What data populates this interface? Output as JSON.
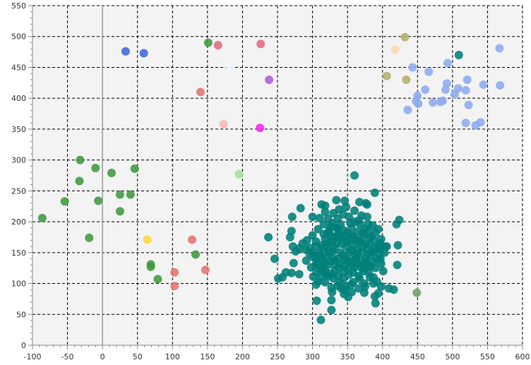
{
  "chart_data": {
    "type": "scatter",
    "title": "",
    "xlabel": "",
    "ylabel": "",
    "xlim": [
      -100,
      600
    ],
    "ylim": [
      0,
      550
    ],
    "x_ticks": [
      -100,
      -50,
      0,
      50,
      100,
      150,
      200,
      250,
      300,
      350,
      400,
      450,
      500,
      550,
      600
    ],
    "y_ticks": [
      0,
      50,
      100,
      150,
      200,
      250,
      300,
      350,
      400,
      450,
      500,
      550
    ],
    "grid": true,
    "zero_line": "x=0",
    "plot_background": "#f3f3f3",
    "marker_radius_note": "uniform filled circles, alpha ~0.85",
    "series": [
      {
        "color": "#00807a",
        "points": [
          [
            360,
            275
          ],
          [
            389,
            247
          ],
          [
            334,
            235
          ],
          [
            378,
            228
          ],
          [
            367,
            232
          ],
          [
            346,
            234
          ],
          [
            313,
            228
          ],
          [
            283,
            222
          ],
          [
            300,
            208
          ],
          [
            271,
            208
          ],
          [
            322,
            205
          ],
          [
            424,
            203
          ],
          [
            270,
            185
          ],
          [
            268,
            175
          ],
          [
            237,
            175
          ],
          [
            272,
            160
          ],
          [
            296,
            158
          ],
          [
            305,
            160
          ],
          [
            281,
            157
          ],
          [
            276,
            152
          ],
          [
            290,
            155
          ],
          [
            422,
            162
          ],
          [
            246,
            140
          ],
          [
            291,
            137
          ],
          [
            273,
            133
          ],
          [
            421,
            130
          ],
          [
            305,
            130
          ],
          [
            310,
            128
          ],
          [
            262,
            118
          ],
          [
            251,
            108
          ],
          [
            270,
            117
          ],
          [
            281,
            115
          ],
          [
            257,
            110
          ],
          [
            301,
            111
          ],
          [
            305,
            98
          ],
          [
            308,
            103
          ],
          [
            323,
            112
          ],
          [
            327,
            93
          ],
          [
            341,
            92
          ],
          [
            345,
            83
          ],
          [
            351,
            78
          ],
          [
            374,
            85
          ],
          [
            389,
            79
          ],
          [
            394,
            84
          ],
          [
            375,
            95
          ],
          [
            409,
            92
          ],
          [
            416,
            90
          ],
          [
            327,
            73
          ],
          [
            306,
            72
          ],
          [
            327,
            57
          ],
          [
            312,
            41
          ],
          [
            390,
            68
          ],
          [
            387,
            100
          ],
          [
            367,
            108
          ],
          [
            355,
            98
          ],
          [
            344,
            118
          ],
          [
            332,
            120
          ],
          [
            320,
            128
          ],
          [
            349,
            140
          ],
          [
            361,
            145
          ],
          [
            372,
            150
          ],
          [
            381,
            163
          ],
          [
            396,
            165
          ],
          [
            404,
            160
          ],
          [
            395,
            148
          ],
          [
            387,
            135
          ],
          [
            379,
            130
          ],
          [
            370,
            125
          ],
          [
            357,
            132
          ],
          [
            346,
            138
          ],
          [
            340,
            150
          ],
          [
            332,
            158
          ],
          [
            325,
            166
          ],
          [
            318,
            172
          ],
          [
            316,
            180
          ],
          [
            324,
            186
          ],
          [
            336,
            188
          ],
          [
            349,
            182
          ],
          [
            359,
            176
          ],
          [
            366,
            170
          ],
          [
            371,
            160
          ],
          [
            364,
            155
          ],
          [
            358,
            162
          ],
          [
            350,
            168
          ],
          [
            341,
            172
          ],
          [
            334,
            165
          ],
          [
            329,
            152
          ],
          [
            321,
            146
          ],
          [
            314,
            140
          ],
          [
            308,
            133
          ],
          [
            312,
            121
          ],
          [
            320,
            115
          ],
          [
            330,
            108
          ],
          [
            339,
            102
          ],
          [
            348,
            96
          ],
          [
            358,
            102
          ],
          [
            366,
            112
          ],
          [
            373,
            120
          ],
          [
            380,
            118
          ],
          [
            387,
            110
          ],
          [
            392,
            103
          ],
          [
            398,
            95
          ],
          [
            401,
            120
          ],
          [
            398,
            132
          ],
          [
            392,
            140
          ],
          [
            386,
            152
          ],
          [
            382,
            174
          ],
          [
            375,
            188
          ],
          [
            368,
            196
          ],
          [
            360,
            200
          ],
          [
            352,
            208
          ],
          [
            344,
            212
          ],
          [
            336,
            205
          ],
          [
            328,
            198
          ],
          [
            316,
            196
          ],
          [
            308,
            188
          ],
          [
            300,
            178
          ],
          [
            292,
            170
          ],
          [
            286,
            165
          ],
          [
            296,
            148
          ],
          [
            304,
            144
          ],
          [
            316,
            158
          ],
          [
            338,
            176
          ],
          [
            356,
            190
          ],
          [
            372,
            182
          ],
          [
            384,
            176
          ],
          [
            390,
            182
          ],
          [
            398,
            172
          ],
          [
            406,
            160
          ],
          [
            403,
            150
          ],
          [
            397,
            140
          ],
          [
            390,
            125
          ],
          [
            382,
            110
          ],
          [
            374,
            100
          ],
          [
            366,
            92
          ],
          [
            356,
            86
          ],
          [
            346,
            90
          ],
          [
            336,
            96
          ],
          [
            328,
            86
          ],
          [
            318,
            102
          ],
          [
            312,
            110
          ],
          [
            306,
            118
          ],
          [
            318,
            134
          ],
          [
            330,
            140
          ],
          [
            344,
            146
          ],
          [
            352,
            150
          ],
          [
            362,
            140
          ],
          [
            368,
            138
          ],
          [
            376,
            140
          ],
          [
            382,
            145
          ],
          [
            358,
            118
          ],
          [
            350,
            124
          ],
          [
            338,
            126
          ],
          [
            330,
            130
          ],
          [
            324,
            150
          ],
          [
            336,
            140
          ],
          [
            348,
            160
          ],
          [
            356,
            154
          ],
          [
            364,
            148
          ],
          [
            342,
            164
          ],
          [
            332,
            176
          ],
          [
            320,
            164
          ],
          [
            310,
            150
          ],
          [
            302,
            142
          ],
          [
            298,
            126
          ],
          [
            311,
            146
          ],
          [
            322,
            182
          ],
          [
            326,
            192
          ],
          [
            340,
            196
          ],
          [
            354,
            198
          ],
          [
            366,
            202
          ],
          [
            378,
            208
          ],
          [
            386,
            194
          ],
          [
            394,
            188
          ],
          [
            380,
            196
          ],
          [
            370,
            210
          ],
          [
            360,
            218
          ],
          [
            348,
            224
          ],
          [
            338,
            220
          ],
          [
            330,
            214
          ],
          [
            318,
            216
          ],
          [
            310,
            206
          ],
          [
            318,
            226
          ],
          [
            396,
            156
          ],
          [
            389,
            158
          ],
          [
            383,
            128
          ],
          [
            377,
            134
          ],
          [
            369,
            166
          ],
          [
            361,
            170
          ],
          [
            353,
            172
          ],
          [
            345,
            176
          ],
          [
            337,
            180
          ],
          [
            329,
            170
          ],
          [
            321,
            158
          ],
          [
            313,
            162
          ],
          [
            305,
            168
          ],
          [
            352,
            114
          ],
          [
            344,
            108
          ],
          [
            336,
            112
          ],
          [
            326,
            116
          ],
          [
            318,
            120
          ],
          [
            360,
            126
          ],
          [
            372,
            130
          ],
          [
            346,
            128
          ],
          [
            354,
            136
          ],
          [
            362,
            132
          ],
          [
            338,
            132
          ],
          [
            326,
            136
          ],
          [
            314,
            128
          ],
          [
            306,
            136
          ],
          [
            300,
            150
          ],
          [
            372,
            176
          ],
          [
            380,
            184
          ],
          [
            388,
            170
          ],
          [
            394,
            160
          ],
          [
            378,
            156
          ],
          [
            384,
            150
          ],
          [
            376,
            164
          ],
          [
            365,
            184
          ],
          [
            356,
            178
          ],
          [
            345,
            186
          ],
          [
            335,
            190
          ],
          [
            325,
            178
          ],
          [
            376,
            230
          ],
          [
            420,
            196
          ]
        ]
      },
      {
        "color": "#3f9a3f",
        "points": [
          [
            -86,
            206
          ],
          [
            -54,
            233
          ],
          [
            -32,
            300
          ],
          [
            -33,
            266
          ],
          [
            -10,
            287
          ],
          [
            -6,
            234
          ],
          [
            -19,
            174
          ],
          [
            13,
            279
          ],
          [
            25,
            244
          ],
          [
            25,
            217
          ],
          [
            40,
            244
          ],
          [
            46,
            286
          ],
          [
            69,
            131
          ],
          [
            69,
            127
          ],
          [
            79,
            107
          ],
          [
            133,
            147
          ],
          [
            151,
            490
          ]
        ]
      },
      {
        "color": "#6fa06a",
        "points": [
          [
            449,
            85
          ]
        ]
      },
      {
        "color": "#e57373",
        "points": [
          [
            103,
            118
          ],
          [
            103,
            96
          ],
          [
            128,
            171
          ],
          [
            147,
            122
          ],
          [
            140,
            410
          ]
        ]
      },
      {
        "color": "#e46a7f",
        "points": [
          [
            165,
            486
          ],
          [
            226,
            488
          ]
        ]
      },
      {
        "color": "#ffb3b8",
        "points": [
          [
            173,
            358
          ]
        ]
      },
      {
        "color": "#3f68d9",
        "points": [
          [
            33,
            476
          ],
          [
            59,
            473
          ]
        ]
      },
      {
        "color": "#fdd835",
        "points": [
          [
            64,
            171
          ]
        ]
      },
      {
        "color": "#9ee39a",
        "points": [
          [
            195,
            277
          ]
        ]
      },
      {
        "color": "#ff22ee",
        "points": [
          [
            225,
            352
          ]
        ]
      },
      {
        "color": "#b15dd6",
        "points": [
          [
            238,
            430
          ]
        ]
      },
      {
        "color": "#eef6ff",
        "points": [
          [
            182,
            449
          ]
        ]
      },
      {
        "color": "#b5ad6c",
        "points": [
          [
            432,
            499
          ],
          [
            406,
            436
          ],
          [
            434,
            430
          ]
        ]
      },
      {
        "color": "#ffd6b0",
        "points": [
          [
            418,
            479
          ]
        ]
      },
      {
        "color": "#00807a",
        "points": [
          [
            509,
            470
          ]
        ]
      },
      {
        "color": "#8cabef",
        "points": [
          [
            567,
            481
          ],
          [
            568,
            421
          ],
          [
            443,
            450
          ],
          [
            466,
            443
          ],
          [
            493,
            457
          ],
          [
            450,
            404
          ],
          [
            448,
            395
          ],
          [
            451,
            391
          ],
          [
            461,
            414
          ],
          [
            472,
            393
          ],
          [
            483,
            394
          ],
          [
            486,
            396
          ],
          [
            492,
            424
          ],
          [
            490,
            414
          ],
          [
            503,
            406
          ],
          [
            508,
            416
          ],
          [
            519,
            413
          ],
          [
            521,
            430
          ],
          [
            523,
            389
          ],
          [
            533,
            356
          ],
          [
            540,
            361
          ],
          [
            544,
            422
          ],
          [
            519,
            360
          ],
          [
            436,
            381
          ]
        ]
      }
    ]
  }
}
